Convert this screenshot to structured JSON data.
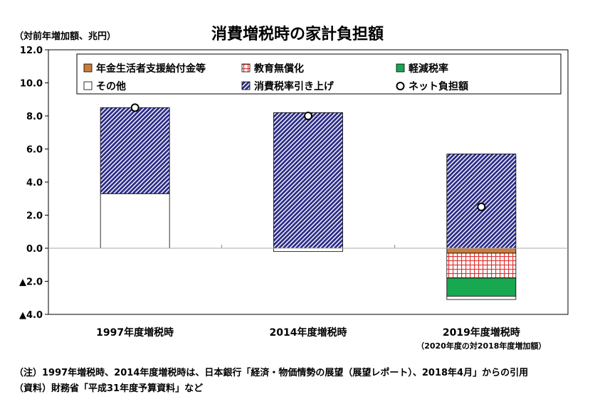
{
  "unit_label": "（対前年増加額、兆円）",
  "notes": [
    "（注）1997年増税時、2014年度増税時は、日本銀行「経済・物価情勢の展望（展望レポート）、2018年4月」からの引用",
    "（資料）財務省「平成31年度予算資料」など"
  ],
  "chart_data": {
    "type": "bar",
    "stacked": true,
    "title": "消費増税時の家計負担額",
    "xlabel": "",
    "ylabel": "",
    "ylim": [
      -4,
      12
    ],
    "ytick_values": [
      12,
      10,
      8,
      6,
      4,
      2,
      0,
      -2,
      -4
    ],
    "ytick_labels": [
      "12.0",
      "10.0",
      "8.0",
      "6.0",
      "4.0",
      "2.0",
      "0.0",
      "▲2.0",
      "▲4.0"
    ],
    "categories": [
      "1997年度増税時",
      "2014年度増税時",
      "2019年度増税時"
    ],
    "category_sublabels": [
      "",
      "",
      "（2020年度の対2018年度増加額）"
    ],
    "series": [
      {
        "name": "年金生活者支援給付金等",
        "values": [
          0,
          0,
          -0.3
        ],
        "color": "#c87d3c",
        "pattern": "solid"
      },
      {
        "name": "教育無償化",
        "values": [
          0,
          0,
          -1.5
        ],
        "color": "#e03030",
        "pattern": "grid"
      },
      {
        "name": "軽減税率",
        "values": [
          0,
          0,
          -1.1
        ],
        "color": "#18a850",
        "pattern": "solid"
      },
      {
        "name": "その他",
        "values": [
          3.3,
          -0.2,
          -0.2
        ],
        "color": "#ffffff",
        "pattern": "solid"
      },
      {
        "name": "消費税率引き上げ",
        "values": [
          5.2,
          8.2,
          5.7
        ],
        "color": "#2e2e8a",
        "pattern": "hatch"
      }
    ],
    "net": {
      "name": "ネット負担額",
      "values": [
        8.5,
        8.0,
        2.5
      ]
    },
    "grid": false,
    "legend_position": "top"
  }
}
